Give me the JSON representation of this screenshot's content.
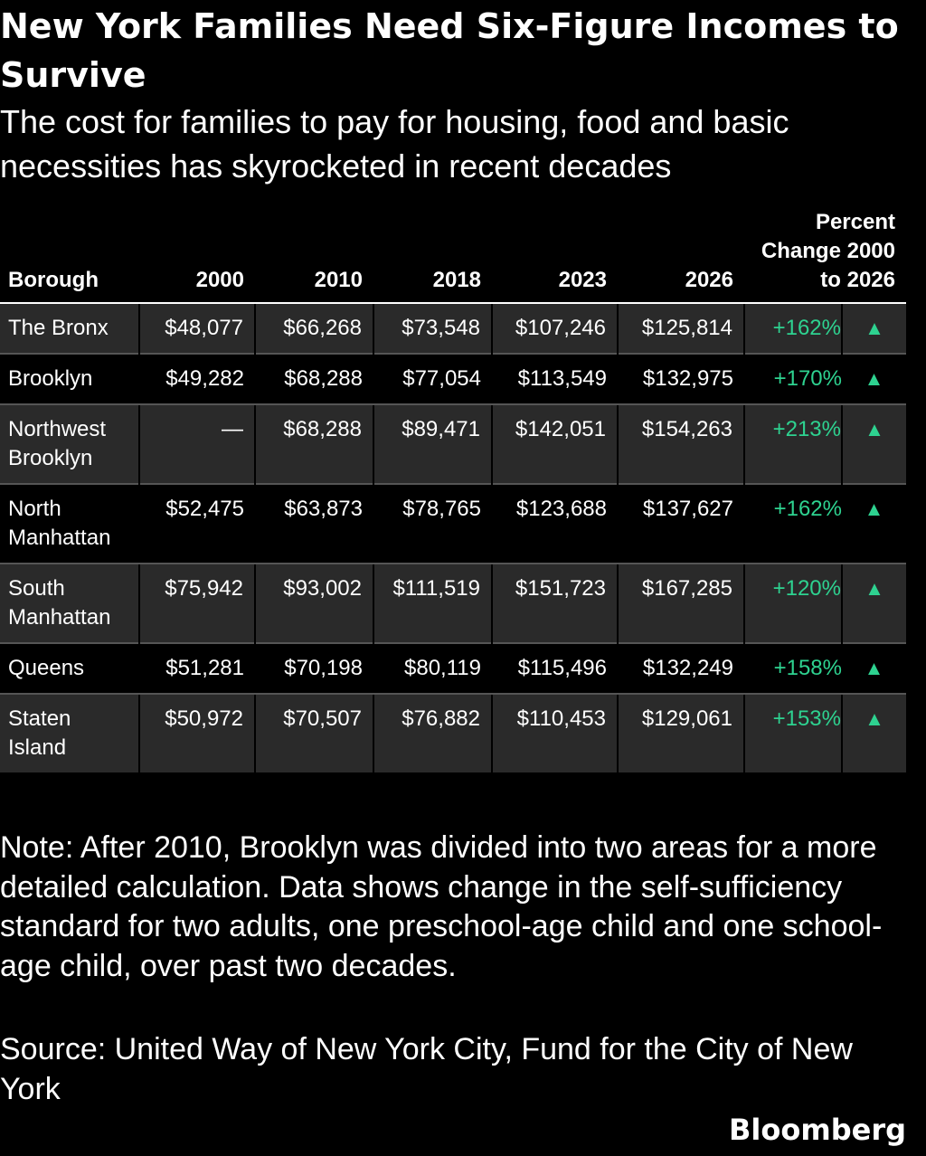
{
  "header": {
    "title": "New York Families Need Six-Figure Incomes to Survive",
    "subtitle": "The cost for families to pay for housing, food and basic necessities has skyrocketed in recent decades"
  },
  "table": {
    "columns": [
      "Borough",
      "2000",
      "2010",
      "2018",
      "2023",
      "2026",
      "Percent Change 2000 to 2026"
    ],
    "rows": [
      [
        "The Bronx",
        "$48,077",
        "$66,268",
        "$73,548",
        "$107,246",
        "$125,814",
        "+162%"
      ],
      [
        "Brooklyn",
        "$49,282",
        "$68,288",
        "$77,054",
        "$113,549",
        "$132,975",
        "+170%"
      ],
      [
        "Northwest Brooklyn",
        "—",
        "$68,288",
        "$89,471",
        "$142,051",
        "$154,263",
        "+213%"
      ],
      [
        "North Manhattan",
        "$52,475",
        "$63,873",
        "$78,765",
        "$123,688",
        "$137,627",
        "+162%"
      ],
      [
        "South Manhattan",
        "$75,942",
        "$93,002",
        "$111,519",
        "$151,723",
        "$167,285",
        "+120%"
      ],
      [
        "Queens",
        "$51,281",
        "$70,198",
        "$80,119",
        "$115,496",
        "$132,249",
        "+158%"
      ],
      [
        "Staten Island",
        "$50,972",
        "$70,507",
        "$76,882",
        "$110,453",
        "$129,061",
        "+153%"
      ]
    ]
  },
  "note": "Note: After 2010, Brooklyn was divided into two areas for a more detailed calculation. Data shows change in the self-sufficiency standard for two adults, one preschool-age child and one school-age child, over past two decades.",
  "source": "Source: United Way of New York City, Fund for the City of New York",
  "logo": "Bloomberg"
}
